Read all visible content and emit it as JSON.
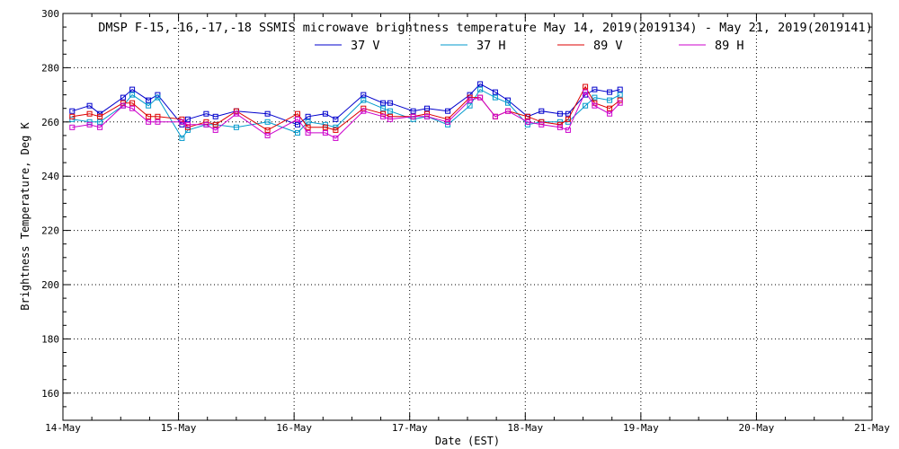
{
  "chart_data": {
    "type": "line",
    "title": "DMSP F-15,-16,-17,-18 SSMIS microwave brightness temperature May 14, 2019(2019134) - May 21, 2019(2019141)",
    "xlabel": "Date (EST)",
    "ylabel": "Brightness Temperature, Deg K",
    "ylim": [
      150,
      300
    ],
    "yticks": [
      160,
      180,
      200,
      220,
      240,
      260,
      280,
      300
    ],
    "xlim": [
      0,
      7
    ],
    "xticks": [
      0,
      1,
      2,
      3,
      4,
      5,
      6,
      7
    ],
    "xtick_labels": [
      "14-May",
      "15-May",
      "16-May",
      "17-May",
      "18-May",
      "19-May",
      "20-May",
      "21-May"
    ],
    "grid": true,
    "legend_position": "top-center",
    "series": [
      {
        "name": "37 V",
        "color": "#0000cc",
        "x": [
          0.08,
          0.23,
          0.32,
          0.52,
          0.6,
          0.74,
          0.82,
          1.03,
          1.08,
          1.24,
          1.32,
          1.5,
          1.77,
          2.03,
          2.12,
          2.27,
          2.36,
          2.6,
          2.77,
          2.83,
          3.03,
          3.15,
          3.33,
          3.52,
          3.61,
          3.74,
          3.85,
          4.02,
          4.14,
          4.3,
          4.37,
          4.52,
          4.6,
          4.73,
          4.82
        ],
        "y": [
          264,
          266,
          263,
          269,
          272,
          268,
          270,
          259,
          261,
          263,
          262,
          264,
          263,
          259,
          262,
          263,
          261,
          270,
          267,
          267,
          264,
          265,
          264,
          270,
          274,
          271,
          268,
          262,
          264,
          263,
          263,
          270,
          272,
          271,
          272
        ]
      },
      {
        "name": "37 H",
        "color": "#0099cc",
        "x": [
          0.08,
          0.23,
          0.32,
          0.52,
          0.6,
          0.74,
          0.82,
          1.03,
          1.08,
          1.24,
          1.32,
          1.5,
          1.77,
          2.03,
          2.12,
          2.27,
          2.36,
          2.6,
          2.77,
          2.83,
          3.03,
          3.15,
          3.33,
          3.52,
          3.61,
          3.74,
          3.85,
          4.02,
          4.14,
          4.3,
          4.37,
          4.52,
          4.6,
          4.73,
          4.82
        ],
        "y": [
          261,
          260,
          260,
          266,
          270,
          266,
          269,
          254,
          257,
          259,
          259,
          258,
          260,
          256,
          260,
          259,
          258,
          268,
          265,
          264,
          261,
          262,
          259,
          266,
          272,
          269,
          267,
          259,
          260,
          260,
          260,
          266,
          269,
          268,
          270
        ]
      },
      {
        "name": "89 V",
        "color": "#dd0000",
        "x": [
          0.08,
          0.23,
          0.32,
          0.52,
          0.6,
          0.74,
          0.82,
          1.03,
          1.08,
          1.24,
          1.32,
          1.5,
          1.77,
          2.03,
          2.12,
          2.27,
          2.36,
          2.6,
          2.77,
          2.83,
          3.03,
          3.15,
          3.33,
          3.52,
          3.61,
          3.74,
          3.85,
          4.02,
          4.14,
          4.3,
          4.37,
          4.52,
          4.6,
          4.73,
          4.82
        ],
        "y": [
          262,
          263,
          262,
          267,
          267,
          262,
          262,
          261,
          258,
          260,
          259,
          264,
          257,
          263,
          258,
          258,
          257,
          265,
          263,
          262,
          262,
          263,
          261,
          269,
          269,
          262,
          264,
          262,
          260,
          259,
          261,
          273,
          267,
          265,
          268
        ]
      },
      {
        "name": "89 H",
        "color": "#cc00cc",
        "x": [
          0.08,
          0.23,
          0.32,
          0.52,
          0.6,
          0.74,
          0.82,
          1.03,
          1.08,
          1.24,
          1.32,
          1.5,
          1.77,
          2.03,
          2.12,
          2.27,
          2.36,
          2.6,
          2.77,
          2.83,
          3.03,
          3.15,
          3.33,
          3.52,
          3.61,
          3.74,
          3.85,
          4.02,
          4.14,
          4.3,
          4.37,
          4.52,
          4.6,
          4.73,
          4.82
        ],
        "y": [
          258,
          259,
          258,
          266,
          265,
          260,
          260,
          260,
          259,
          259,
          257,
          263,
          255,
          261,
          256,
          256,
          254,
          264,
          262,
          261,
          262,
          262,
          260,
          268,
          269,
          262,
          264,
          260,
          259,
          258,
          257,
          271,
          266,
          263,
          267
        ]
      }
    ]
  }
}
